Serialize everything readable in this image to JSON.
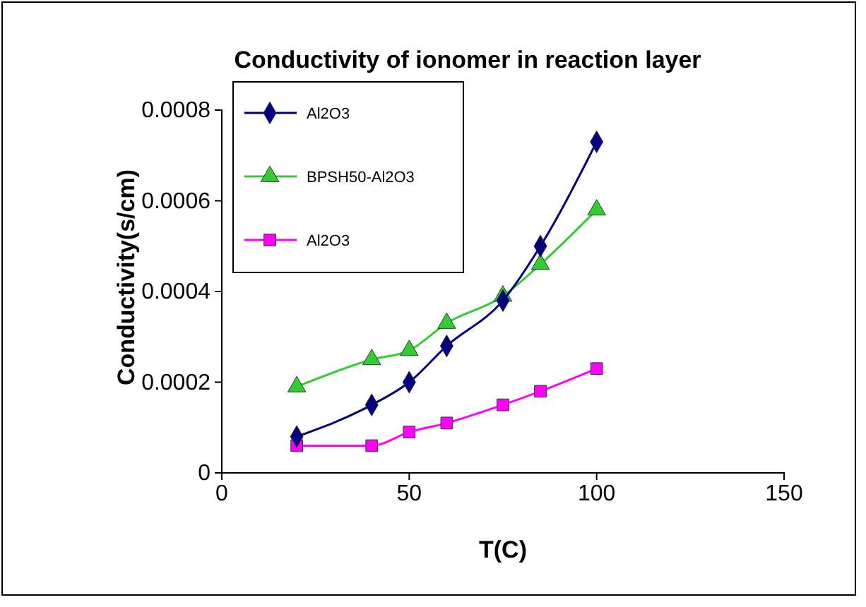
{
  "chart_data": {
    "type": "line",
    "title": "Conductivity of ionomer in reaction layer",
    "xlabel": "T(C)",
    "ylabel": "Conductivity(s/cm)",
    "xlim": [
      0,
      150
    ],
    "xticks": [
      0,
      50,
      100,
      150
    ],
    "ylim": [
      0,
      0.0008
    ],
    "yticks": [
      0,
      0.0002,
      0.0004,
      0.0006,
      0.0008
    ],
    "legend": "top left",
    "grid": false,
    "series": [
      {
        "name": "Al2O3",
        "color": "#000080",
        "marker": "diamond",
        "x": [
          20,
          40,
          50,
          60,
          75,
          85,
          100
        ],
        "values": [
          8e-05,
          0.00015,
          0.0002,
          0.00028,
          0.00038,
          0.0005,
          0.00073
        ]
      },
      {
        "name": "BPSH50-Al2O3",
        "color": "#33cc33",
        "marker": "triangle",
        "x": [
          20,
          40,
          50,
          60,
          75,
          85,
          100
        ],
        "values": [
          0.00019,
          0.00025,
          0.00027,
          0.00033,
          0.00039,
          0.00046,
          0.00058
        ]
      },
      {
        "name": "Al2O3",
        "color": "#ff00ff",
        "marker": "square",
        "x": [
          20,
          40,
          50,
          60,
          75,
          85,
          100
        ],
        "values": [
          6e-05,
          6e-05,
          9e-05,
          0.00011,
          0.00015,
          0.00018,
          0.00023
        ]
      }
    ]
  }
}
